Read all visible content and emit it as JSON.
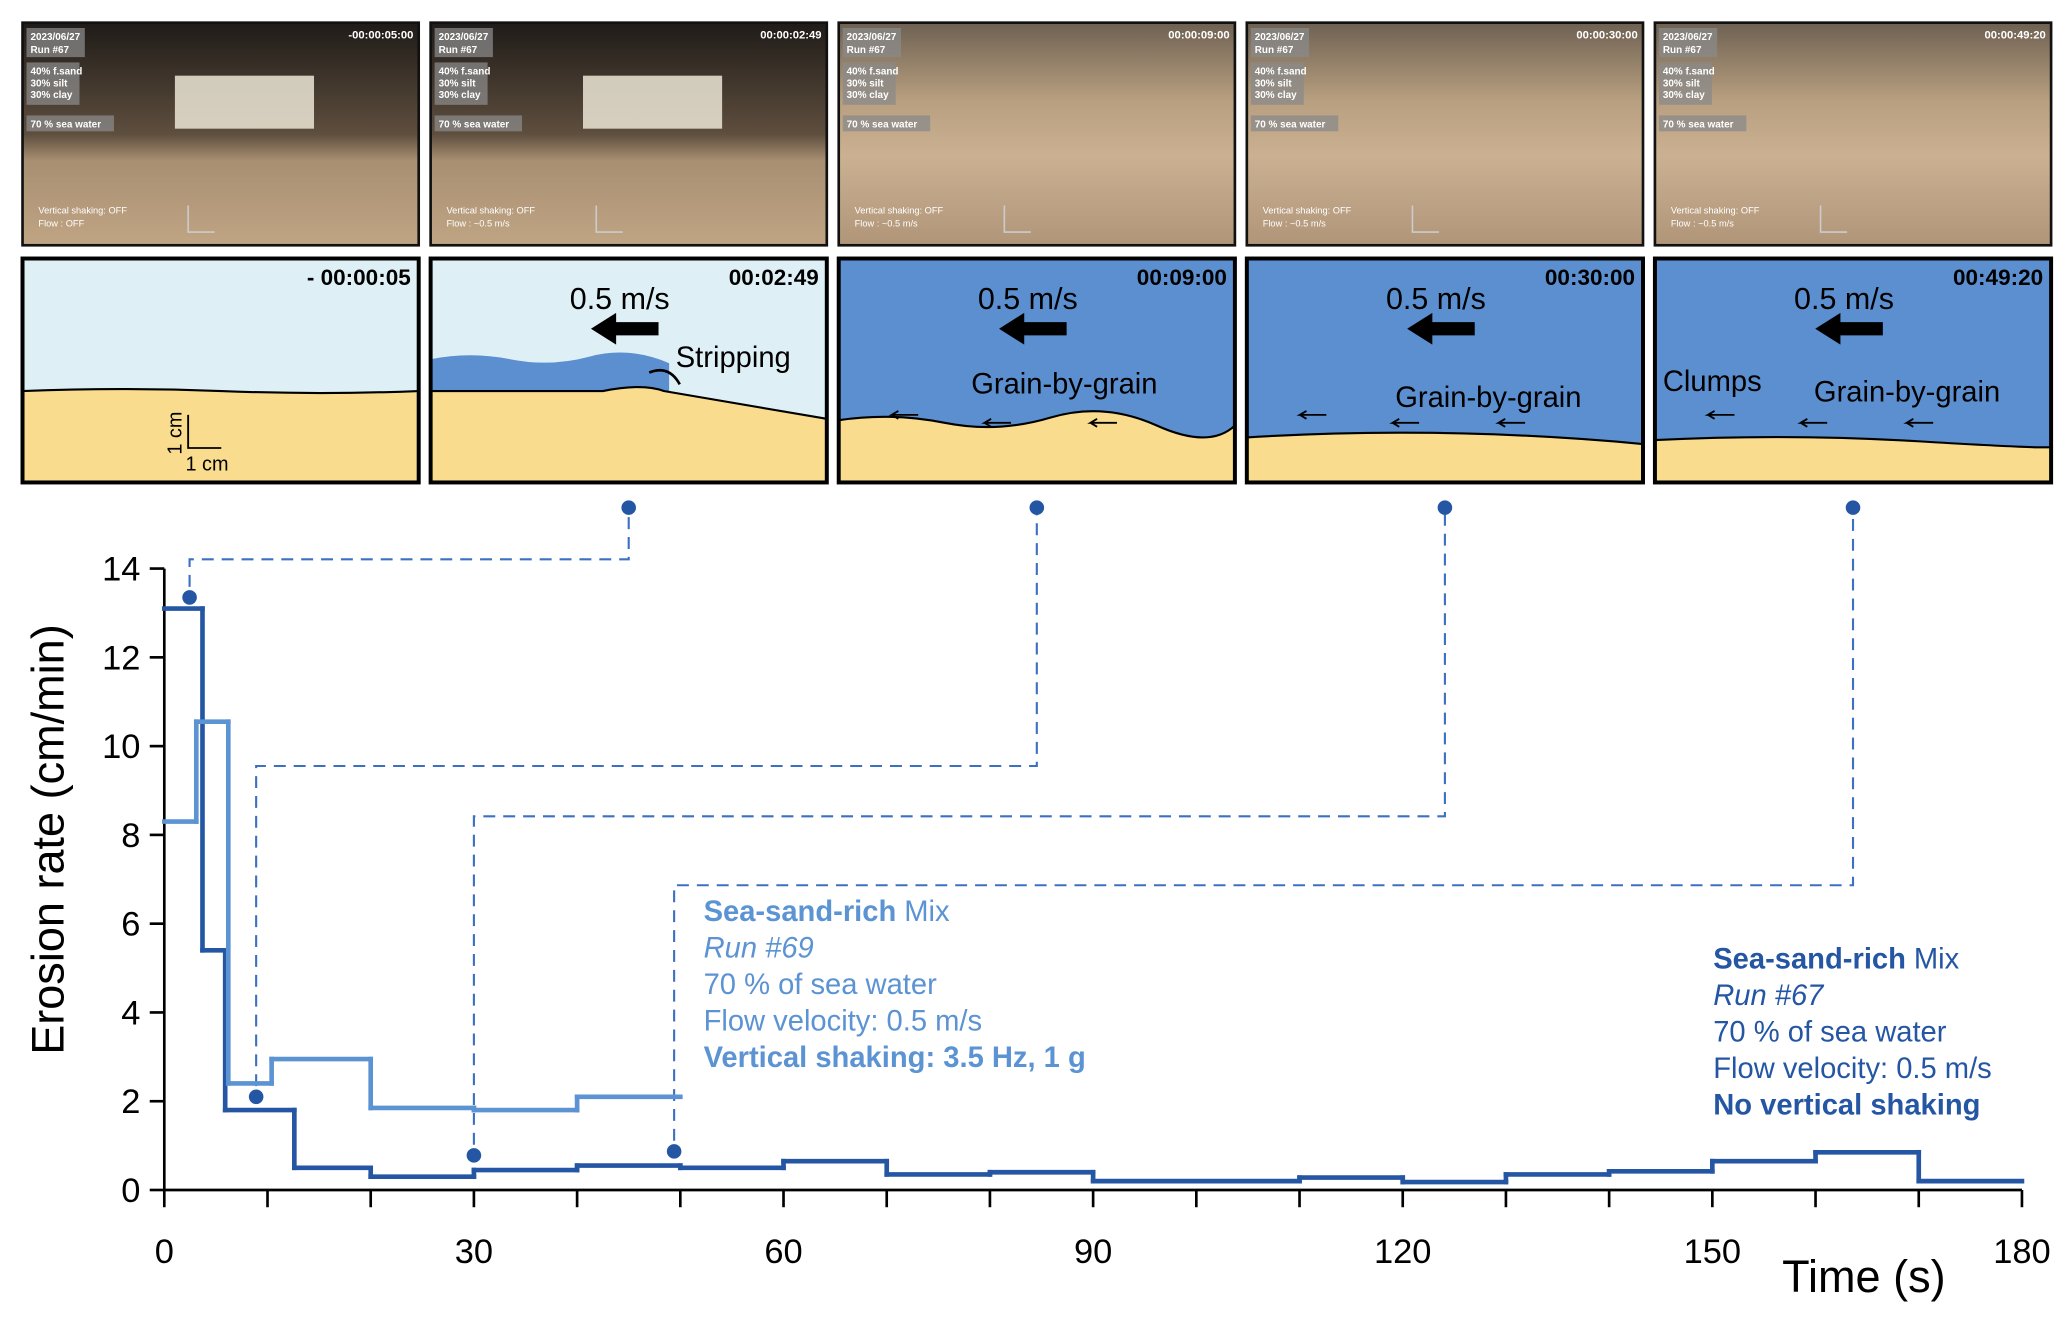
{
  "photo_common": {
    "date": "2023/06/27",
    "run": "Run #67",
    "composition": [
      "40% f.sand",
      "30% silt",
      "30% clay"
    ],
    "water": "70 % sea water",
    "shaking": "Vertical shaking: OFF"
  },
  "panels": [
    {
      "photo": {
        "timestamp": "-00:00:05:00",
        "flow": "Flow : OFF"
      },
      "schematic": {
        "time": "- 00:00:05",
        "scale_x": "1 cm",
        "scale_y": "1 cm",
        "labels": []
      }
    },
    {
      "photo": {
        "timestamp": "00:00:02:49",
        "flow": "Flow : ~0.5 m/s"
      },
      "schematic": {
        "time": "00:02:49",
        "speed": "0.5 m/s",
        "labels": [
          "Stripping"
        ]
      }
    },
    {
      "photo": {
        "timestamp": "00:00:09:00",
        "flow": "Flow : ~0.5 m/s"
      },
      "schematic": {
        "time": "00:09:00",
        "speed": "0.5 m/s",
        "labels": [
          "Grain-by-grain"
        ]
      }
    },
    {
      "photo": {
        "timestamp": "00:00:30:00",
        "flow": "Flow : ~0.5 m/s"
      },
      "schematic": {
        "time": "00:30:00",
        "speed": "0.5 m/s",
        "labels": [
          "Grain-by-grain"
        ]
      }
    },
    {
      "photo": {
        "timestamp": "00:00:49:20",
        "flow": "Flow : ~0.5 m/s"
      },
      "schematic": {
        "time": "00:49:20",
        "speed": "0.5 m/s",
        "labels": [
          "Clumps",
          "Grain-by-grain"
        ]
      }
    }
  ],
  "chart_data": {
    "type": "step",
    "x_label": "Time (s)",
    "y_label": "Erosion rate (cm/min)",
    "xlim": [
      0,
      180
    ],
    "ylim": [
      0,
      14
    ],
    "xticks": [
      0,
      30,
      60,
      90,
      120,
      150,
      180
    ],
    "xticks_minor": [
      10,
      20,
      40,
      50,
      70,
      80,
      100,
      110,
      130,
      140,
      160,
      170
    ],
    "yticks": [
      0,
      2,
      4,
      6,
      8,
      10,
      12,
      14
    ],
    "series": [
      {
        "name": "Run #67",
        "color": "#2456a4",
        "mix_bold": "Sea-sand-rich",
        "mix": "Mix",
        "details": [
          "70 % of sea water",
          "Flow velocity: 0.5 m/s"
        ],
        "shaking": "No vertical shaking",
        "bins": [
          0,
          3.7,
          5.9,
          12.6,
          20,
          30,
          40,
          50,
          60,
          70,
          80,
          90,
          110,
          120,
          130,
          140,
          150,
          160,
          170,
          180
        ],
        "values": [
          13.1,
          5.4,
          1.8,
          0.5,
          0.3,
          0.45,
          0.55,
          0.5,
          0.65,
          0.35,
          0.4,
          0.2,
          0.28,
          0.18,
          0.35,
          0.42,
          0.65,
          0.85,
          0.2
        ]
      },
      {
        "name": "Run #69",
        "color": "#5b93d3",
        "mix_bold": "Sea-sand-rich",
        "mix": "Mix",
        "details": [
          "70 % of sea water",
          "Flow velocity: 0.5 m/s"
        ],
        "shaking": "Vertical shaking: 3.5 Hz, 1 g",
        "bins": [
          0,
          3.1,
          6.2,
          10.4,
          20,
          30,
          40,
          50
        ],
        "values": [
          8.3,
          10.55,
          2.4,
          2.95,
          1.85,
          1.8,
          2.1
        ]
      }
    ],
    "points": {
      "color": "#2456a4",
      "x": [
        2.45,
        8.9,
        30,
        49.4
      ],
      "y": [
        13.35,
        2.1,
        0.78,
        0.87
      ]
    }
  }
}
